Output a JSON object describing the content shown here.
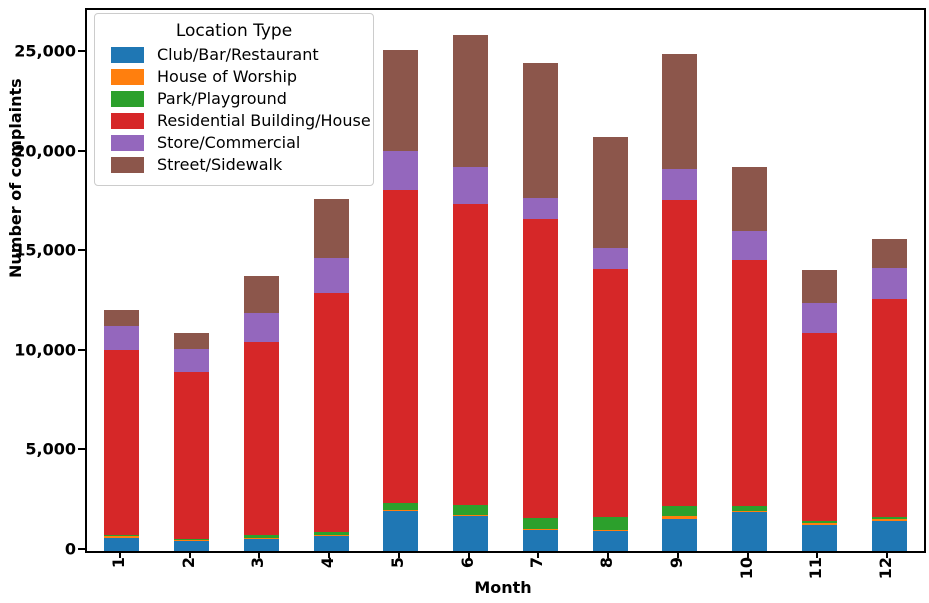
{
  "chart_data": {
    "type": "bar",
    "stacked": true,
    "title": "",
    "xlabel": "Month",
    "ylabel": "Number of complaints",
    "legend_title": "Location Type",
    "legend_position": "upper left",
    "grid": false,
    "categories": [
      "1",
      "2",
      "3",
      "4",
      "5",
      "6",
      "7",
      "8",
      "9",
      "10",
      "11",
      "12"
    ],
    "yticks": [
      0,
      5000,
      10000,
      15000,
      20000,
      25000
    ],
    "ytick_labels": [
      "0",
      "5,000",
      "10,000",
      "15,000",
      "20,000",
      "25,000"
    ],
    "ylim": [
      0,
      27185
    ],
    "series": [
      {
        "name": "Club/Bar/Restaurant",
        "color": "#1f77b4",
        "values": [
          670,
          500,
          620,
          740,
          2000,
          1750,
          1040,
          990,
          1610,
          1950,
          1290,
          1490
        ]
      },
      {
        "name": "House of Worship",
        "color": "#ff7f0e",
        "values": [
          70,
          50,
          50,
          50,
          50,
          50,
          50,
          50,
          150,
          70,
          100,
          100
        ]
      },
      {
        "name": "Park/Playground",
        "color": "#2ca02c",
        "values": [
          50,
          50,
          150,
          170,
          380,
          530,
          570,
          670,
          490,
          250,
          100,
          100
        ]
      },
      {
        "name": "Residential Building/House",
        "color": "#d62728",
        "values": [
          9330,
          8390,
          9690,
          12010,
          15700,
          15100,
          15010,
          12450,
          15410,
          12370,
          9460,
          10990
        ]
      },
      {
        "name": "Store/Commercial",
        "color": "#9467bd",
        "values": [
          1200,
          1170,
          1460,
          1760,
          1980,
          1880,
          1090,
          1070,
          1560,
          1440,
          1510,
          1540
        ]
      },
      {
        "name": "Street/Sidewalk",
        "color": "#8c564b",
        "values": [
          800,
          800,
          1840,
          2980,
          5050,
          6600,
          6740,
          5580,
          5780,
          3220,
          1680,
          1470
        ]
      }
    ],
    "totals": [
      12120,
      10960,
      13810,
      17710,
      25160,
      25910,
      24500,
      20810,
      25000,
      19300,
      14140,
      15690
    ]
  }
}
